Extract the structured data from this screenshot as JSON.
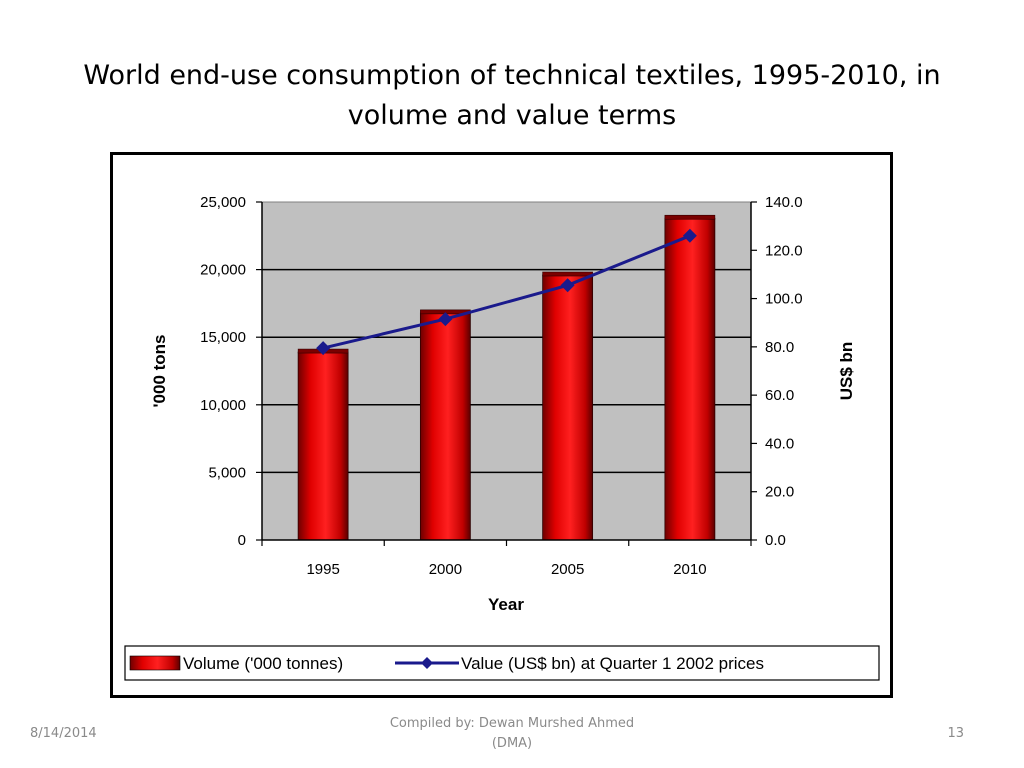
{
  "slide": {
    "title": "World end-use consumption of technical textiles, 1995-2010, in\nvolume and value terms",
    "footer_date": "8/14/2014",
    "footer_credit_line1": "Compiled by: Dewan Murshed Ahmed",
    "footer_credit_line2": "(DMA)",
    "page_number": "13"
  },
  "chart_data": {
    "type": "bar",
    "categories": [
      "1995",
      "2000",
      "2005",
      "2010"
    ],
    "xlabel": "Year",
    "ylabel": "'000 tons",
    "y2label": "US$ bn",
    "ylim": [
      0,
      25000
    ],
    "y2lim": [
      0,
      140
    ],
    "yticks": [
      "0",
      "5,000",
      "10,000",
      "15,000",
      "20,000",
      "25,000"
    ],
    "y2ticks": [
      "0.0",
      "20.0",
      "40.0",
      "60.0",
      "80.0",
      "100.0",
      "120.0",
      "140.0"
    ],
    "grid": true,
    "plot_background": "#c0c0c0",
    "legend_position": "bottom",
    "series": [
      {
        "name": "Volume ('000 tonnes)",
        "type": "bar",
        "axis": "left",
        "color": "#e00000",
        "values": [
          13900,
          16800,
          19600,
          23800
        ]
      },
      {
        "name": "Value (US$ bn) at Quarter 1 2002 prices",
        "type": "line",
        "axis": "right",
        "color": "#1a1a8c",
        "values": [
          79.5,
          91.5,
          105.5,
          126.0
        ]
      }
    ]
  }
}
